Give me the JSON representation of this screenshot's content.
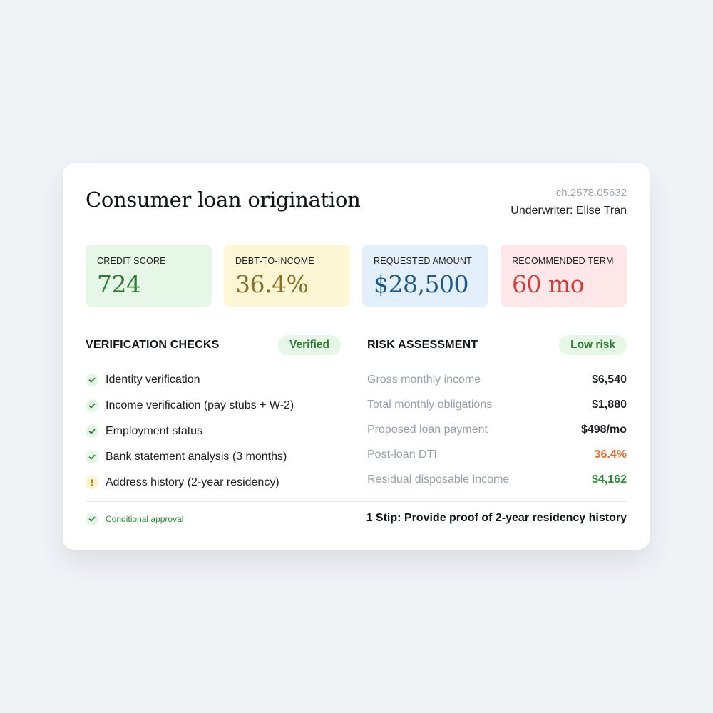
{
  "card": {
    "title": "Consumer loan origination",
    "id": "ch.2578.05632",
    "underwriter": "Underwriter: Elise Tran"
  },
  "metrics": [
    {
      "label": "CREDIT SCORE",
      "value": "724"
    },
    {
      "label": "DEBT-TO-INCOME",
      "value": "36.4%"
    },
    {
      "label": "REQUESTED AMOUNT",
      "value": "$28,500"
    },
    {
      "label": "RECOMMENDED TERM",
      "value": "60 mo"
    }
  ],
  "verification": {
    "title": "VERIFICATION CHECKS",
    "badge": "Verified",
    "items": [
      {
        "label": "Identity verification",
        "status": "check-icon"
      },
      {
        "label": "Income verification (pay stubs + W-2)",
        "status": "check-icon"
      },
      {
        "label": "Employment status",
        "status": "check-icon"
      },
      {
        "label": "Bank statement analysis (3 months)",
        "status": "check-icon"
      },
      {
        "label": "Address history (2-year residency)",
        "status": "warning-icon",
        "glyph": "!"
      }
    ]
  },
  "risk": {
    "title": "RISK ASSESSMENT",
    "badge": "Low risk",
    "rows": [
      {
        "label": "Gross monthly income",
        "value": "$6,540"
      },
      {
        "label": "Total monthly obligations",
        "value": "$1,880"
      },
      {
        "label": "Proposed loan payment",
        "value": "$498/mo"
      },
      {
        "label": "Post-loan DTI",
        "value": "36.4%",
        "color": "#f06a2a"
      },
      {
        "label": "Residual disposable income",
        "value": "$4,162",
        "color": "#2e8a35"
      }
    ]
  },
  "footer": {
    "status": "Conditional approval",
    "stip": "1 Stip: Provide proof of 2-year residency history"
  },
  "colors": {
    "page_bg": "#f1f3f7",
    "green": "#2e7d32",
    "orange": "#f06a2a",
    "red": "#d23b3b",
    "blue": "#1e5a8c"
  }
}
